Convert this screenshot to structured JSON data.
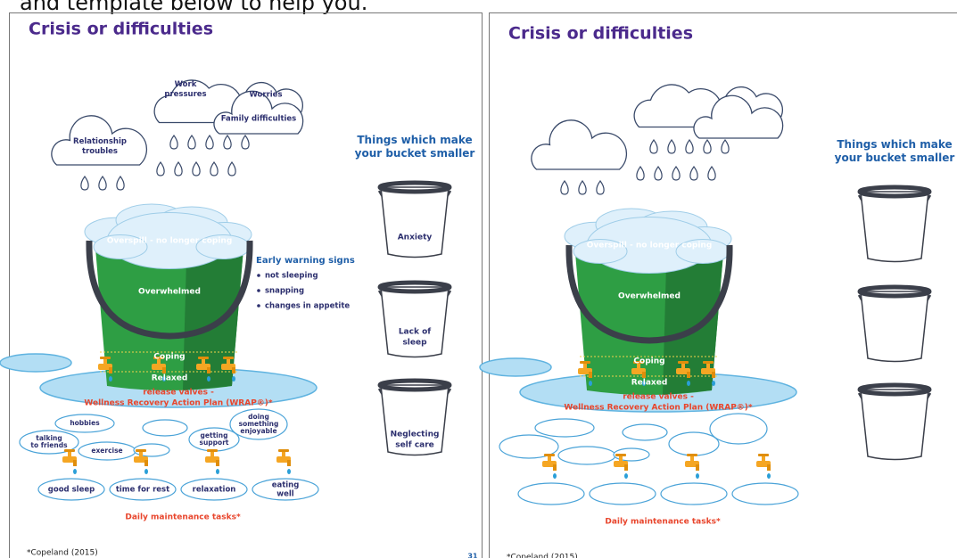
{
  "header_fragment": "and template below to help you.",
  "left": {
    "title": "Crisis or difficulties",
    "clouds": [
      [
        "Work",
        "pressures"
      ],
      [
        "Worries"
      ],
      [
        "Family difficulties"
      ],
      [
        "Relationship",
        "troubles"
      ]
    ],
    "smaller_heading": [
      "Things which make",
      "your bucket smaller"
    ],
    "smaller_items": [
      [
        "Anxiety"
      ],
      [
        "Lack of",
        "sleep"
      ],
      [
        "Neglecting",
        "self care"
      ]
    ],
    "levels": [
      "Overspill - no longer coping",
      "Overwhelmed",
      "Coping",
      "Relaxed"
    ],
    "warning_title": "Early warning signs",
    "warning_signs": [
      "not sleeping",
      "snapping",
      "changes in appetite"
    ],
    "release_valves": [
      "release valves -",
      "Wellness Recovery Action Plan (WRAP®)*"
    ],
    "activities": [
      [
        "hobbies"
      ],
      [
        "talking",
        "to friends"
      ],
      [
        "exercise"
      ],
      [
        "getting",
        "support"
      ],
      [
        "doing",
        "something",
        "enjoyable"
      ]
    ],
    "maintenance": [
      [
        "good sleep"
      ],
      [
        "time for rest"
      ],
      [
        "relaxation"
      ],
      [
        "eating",
        "well"
      ]
    ],
    "maintenance_label": "Daily maintenance tasks*",
    "footnote": "*Copeland (2015)",
    "page_number": "31"
  },
  "right": {
    "title": "Crisis or difficulties",
    "smaller_heading": [
      "Things which make",
      "your bucket smaller"
    ],
    "levels": [
      "Overspill - no longer coping",
      "Overwhelmed",
      "Coping",
      "Relaxed"
    ],
    "release_valves": [
      "release valves -",
      "Wellness Recovery Action Plan (WRAP®)*"
    ],
    "maintenance_label": "Daily maintenance tasks*",
    "footnote": "*Copeland (2015)"
  }
}
